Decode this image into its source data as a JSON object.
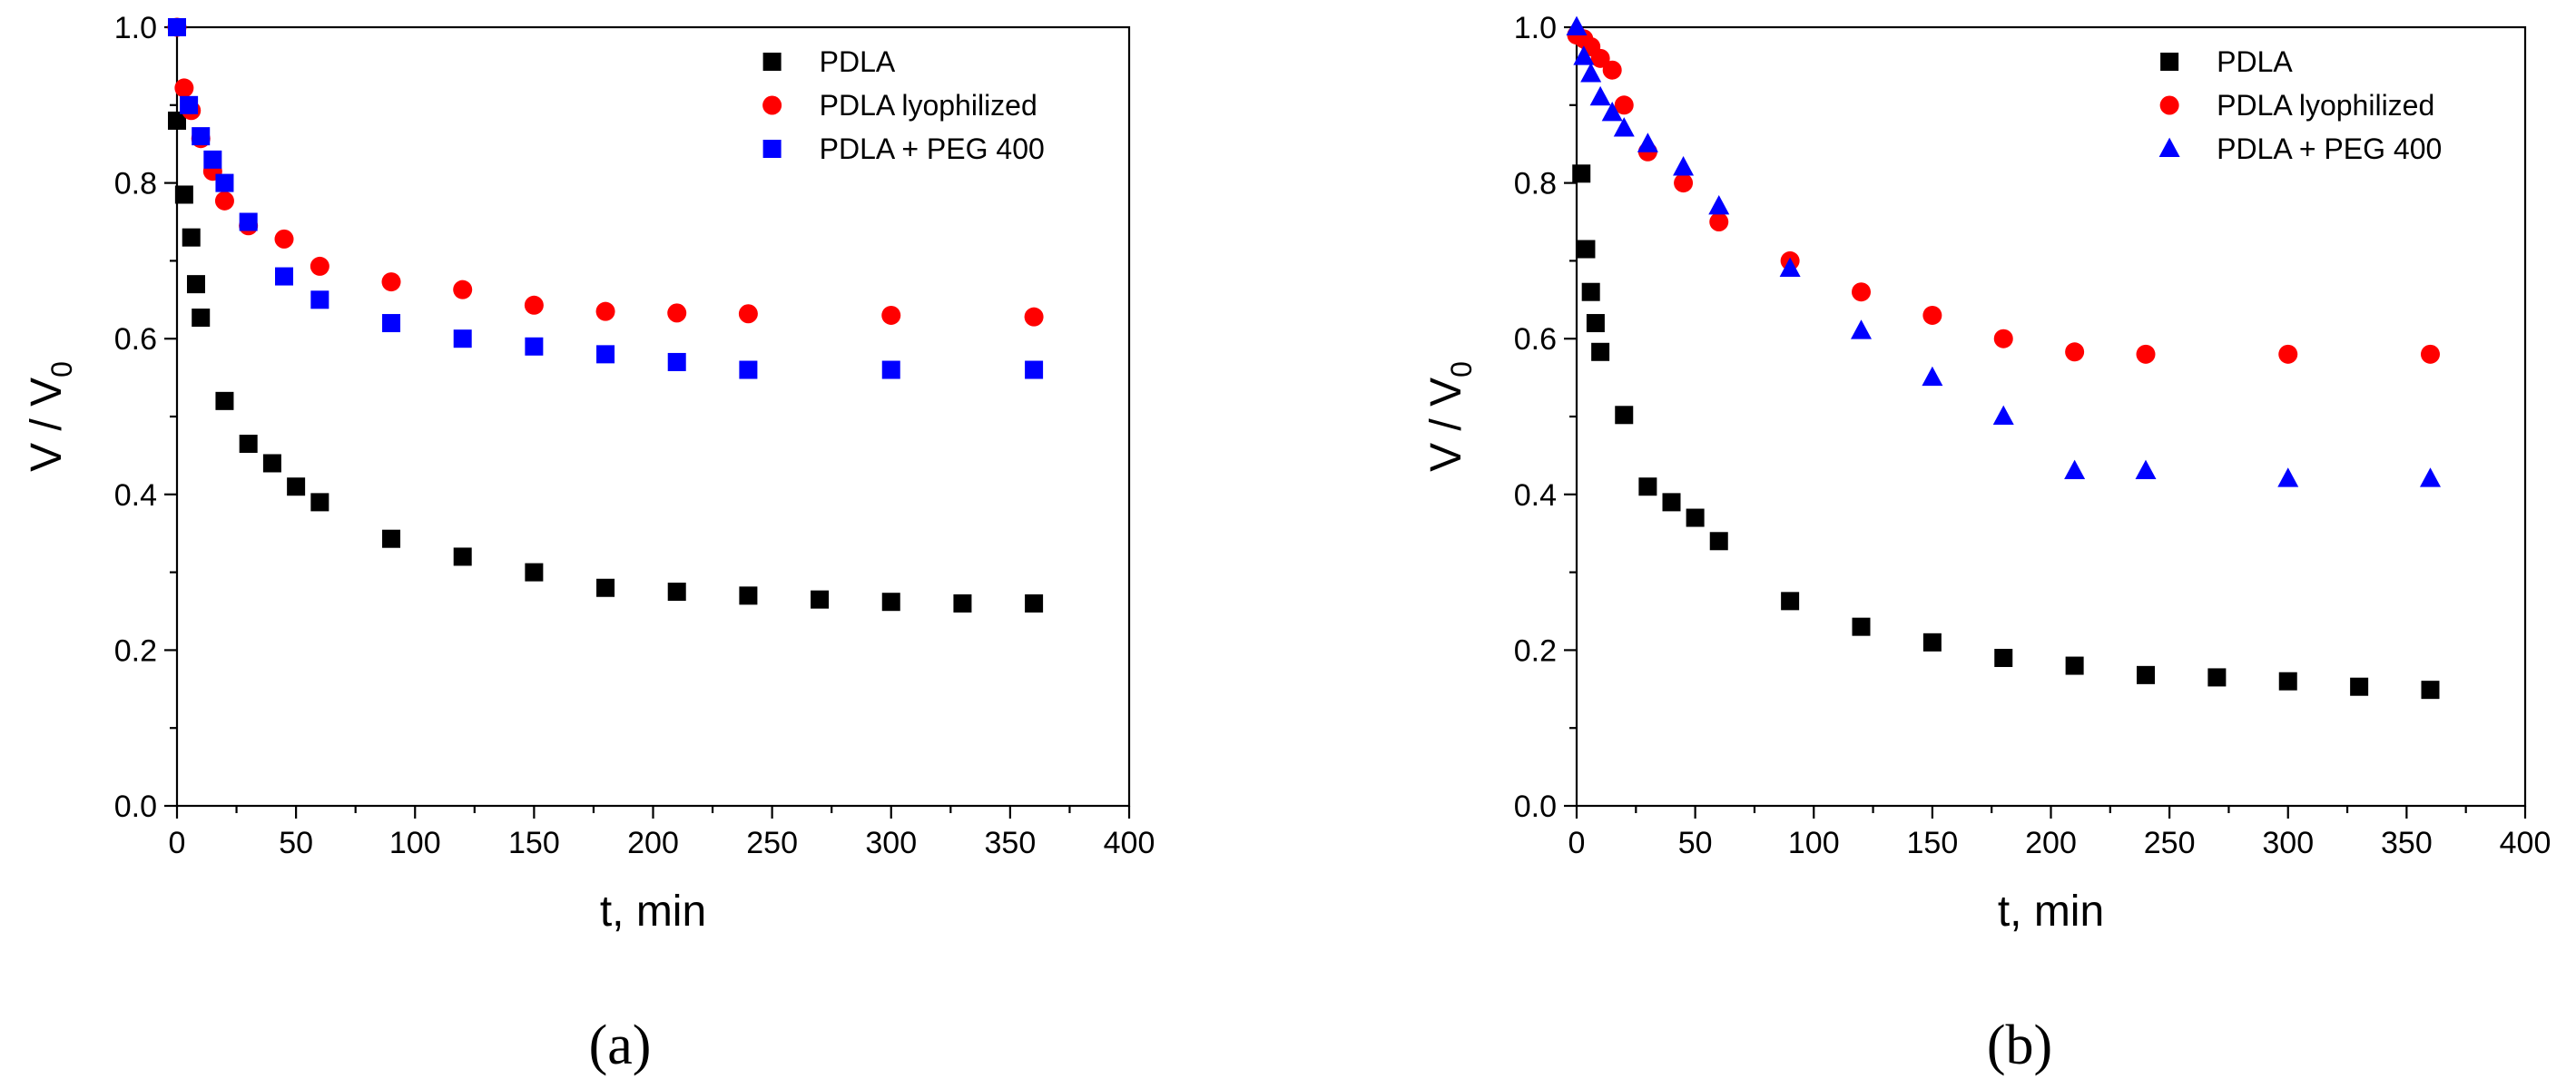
{
  "figure": {
    "captions": [
      "(a)",
      "(b)"
    ]
  },
  "chart_data": [
    {
      "type": "scatter",
      "panel": "a",
      "caption": "(a)",
      "xlabel": "t, min",
      "ylabel_main": "V / V",
      "ylabel_sub": "0",
      "xlim": [
        0,
        400
      ],
      "ylim": [
        0,
        1.0
      ],
      "xticks": [
        "0",
        "50",
        "100",
        "150",
        "200",
        "250",
        "300",
        "350",
        "400"
      ],
      "yticks": [
        "0.0",
        "0.2",
        "0.4",
        "0.6",
        "0.8",
        "1.0"
      ],
      "legend_position": "top-right",
      "series": [
        {
          "name": "PDLA",
          "marker": "square",
          "color": "#000000",
          "x": [
            0,
            3,
            6,
            8,
            10,
            20,
            30,
            40,
            50,
            60,
            90,
            120,
            150,
            180,
            210,
            240,
            270,
            300,
            330,
            360
          ],
          "y": [
            0.88,
            0.785,
            0.73,
            0.67,
            0.627,
            0.52,
            0.465,
            0.44,
            0.41,
            0.39,
            0.343,
            0.32,
            0.3,
            0.28,
            0.275,
            0.27,
            0.265,
            0.262,
            0.26,
            0.26
          ]
        },
        {
          "name": "PDLA lyophilized",
          "marker": "circle",
          "color": "#ff0000",
          "x": [
            0,
            3,
            6,
            10,
            15,
            20,
            30,
            45,
            60,
            90,
            120,
            150,
            180,
            210,
            240,
            300,
            360
          ],
          "y": [
            1.0,
            0.922,
            0.893,
            0.857,
            0.815,
            0.777,
            0.745,
            0.728,
            0.693,
            0.673,
            0.663,
            0.643,
            0.635,
            0.633,
            0.632,
            0.63,
            0.628
          ]
        },
        {
          "name": "PDLA + PEG 400",
          "marker": "square",
          "color": "#0000ff",
          "x": [
            0,
            5,
            10,
            15,
            20,
            30,
            45,
            60,
            90,
            120,
            150,
            180,
            210,
            240,
            300,
            360
          ],
          "y": [
            1.0,
            0.9,
            0.86,
            0.83,
            0.8,
            0.75,
            0.68,
            0.65,
            0.62,
            0.6,
            0.59,
            0.58,
            0.57,
            0.56,
            0.56,
            0.56
          ]
        }
      ]
    },
    {
      "type": "scatter",
      "panel": "b",
      "caption": "(b)",
      "xlabel": "t, min",
      "ylabel_main": "V / V",
      "ylabel_sub": "0",
      "xlim": [
        0,
        400
      ],
      "ylim": [
        0,
        1.0
      ],
      "xticks": [
        "0",
        "50",
        "100",
        "150",
        "200",
        "250",
        "300",
        "350",
        "400"
      ],
      "yticks": [
        "0.0",
        "0.2",
        "0.4",
        "0.6",
        "0.8",
        "1.0"
      ],
      "legend_position": "top-right",
      "series": [
        {
          "name": "PDLA",
          "marker": "square",
          "color": "#000000",
          "x": [
            2,
            4,
            6,
            8,
            10,
            20,
            30,
            40,
            50,
            60,
            90,
            120,
            150,
            180,
            210,
            240,
            270,
            300,
            330,
            360
          ],
          "y": [
            0.812,
            0.715,
            0.66,
            0.62,
            0.583,
            0.502,
            0.41,
            0.39,
            0.37,
            0.34,
            0.263,
            0.23,
            0.21,
            0.19,
            0.18,
            0.168,
            0.165,
            0.16,
            0.153,
            0.149
          ]
        },
        {
          "name": "PDLA lyophilized",
          "marker": "circle",
          "color": "#ff0000",
          "x": [
            0,
            3,
            6,
            10,
            15,
            20,
            30,
            45,
            60,
            90,
            120,
            150,
            180,
            210,
            240,
            300,
            360
          ],
          "y": [
            0.99,
            0.985,
            0.975,
            0.96,
            0.945,
            0.9,
            0.84,
            0.8,
            0.75,
            0.7,
            0.66,
            0.63,
            0.6,
            0.583,
            0.58,
            0.58,
            0.58
          ]
        },
        {
          "name": "PDLA + PEG 400",
          "marker": "triangle",
          "color": "#0000ff",
          "x": [
            0,
            3,
            6,
            10,
            15,
            20,
            30,
            45,
            60,
            90,
            120,
            150,
            180,
            210,
            240,
            300,
            360
          ],
          "y": [
            1.0,
            0.962,
            0.94,
            0.91,
            0.89,
            0.87,
            0.85,
            0.82,
            0.77,
            0.69,
            0.61,
            0.55,
            0.5,
            0.43,
            0.43,
            0.42,
            0.42
          ]
        }
      ]
    }
  ]
}
